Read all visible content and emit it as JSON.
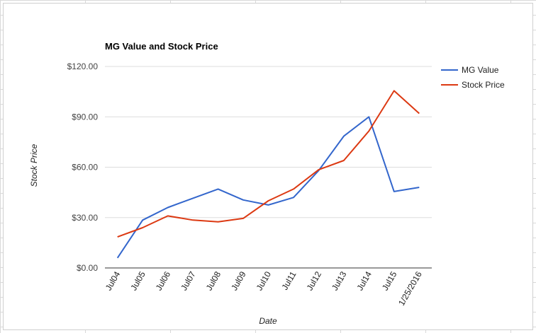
{
  "chart_data": {
    "type": "line",
    "title": "MG Value and Stock Price",
    "xlabel": "Date",
    "ylabel": "Stock Price",
    "categories": [
      "Jul04",
      "Jul05",
      "Jul06",
      "Jul07",
      "Jul08",
      "Jul09",
      "Jul10",
      "Jul11",
      "Jul12",
      "Jul13",
      "Jul14",
      "Jul15",
      "1/25/2016"
    ],
    "ylim": [
      0,
      120
    ],
    "yticks": [
      0,
      30,
      60,
      90,
      120
    ],
    "ytick_labels": [
      "$0.00",
      "$30.00",
      "$60.00",
      "$90.00",
      "$120.00"
    ],
    "grid": true,
    "legend": "right",
    "series": [
      {
        "name": "MG Value",
        "color": "#3366cc",
        "values": [
          6,
          28.5,
          36,
          41.5,
          47,
          40.5,
          37.5,
          42,
          58,
          78.5,
          90,
          45.5,
          48
        ]
      },
      {
        "name": "Stock Price",
        "color": "#dc3912",
        "values": [
          18.5,
          24,
          31,
          28.5,
          27.5,
          29.5,
          40,
          47,
          58.5,
          64,
          81.5,
          105.5,
          92
        ]
      }
    ]
  }
}
